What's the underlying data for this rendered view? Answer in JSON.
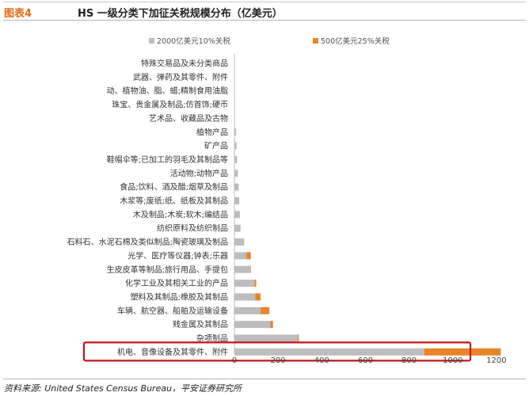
{
  "header": {
    "figure_label": "图表4",
    "title": "HS 一级分类下加征关税规模分布（亿美元）"
  },
  "footer": {
    "source": "资料来源: United States Census Bureau，平安证券研究所"
  },
  "colors": {
    "series1": "#bdbdbd",
    "series2": "#e8852a",
    "highlight_box": "#c0161b",
    "figure_label": "#e06a14"
  },
  "chart_data": {
    "type": "bar",
    "orientation": "horizontal",
    "stacked": true,
    "categories": [
      "特殊交易品及未分类商品",
      "武器、弹药及其零件、附件",
      "动、植物油、脂、蜡;精制食用油脂",
      "珠宝、贵金属及制品;仿首饰;硬币",
      "艺术品、收藏品及古物",
      "植物产品",
      "矿产品",
      "鞋帽伞等;已加工的羽毛及其制品等",
      "活动物;动物产品",
      "食品;饮料、酒及醋;烟草及制品",
      "木浆等;废纸;纸、纸板及其制品",
      "木及制品;木炭;软木;编结品",
      "纺织原料及纺织制品",
      "石料石、水泥石棉及类似制品;陶瓷玻璃及制品",
      "光学、医疗等仪器;钟表;乐器",
      "生皮皮革等制品;旅行用品、手提包",
      "化学工业及其相关工业的产品",
      "塑料及其制品;橡胶及其制品",
      "车辆、航空器、船舶及运输设备",
      "贱金属及其制品",
      "杂项制品",
      "机电、音像设备及其零件、附件"
    ],
    "series": [
      {
        "name": "2000亿美元10%关税",
        "values": [
          0,
          0,
          0,
          2,
          2,
          8,
          10,
          12,
          16,
          20,
          22,
          25,
          28,
          45,
          55,
          72,
          92,
          95,
          120,
          165,
          290,
          870
        ]
      },
      {
        "name": "500亿美元25%关税",
        "values": [
          0,
          0,
          0,
          0,
          0,
          0,
          0,
          0,
          0,
          0,
          0,
          0,
          0,
          0,
          20,
          3,
          8,
          25,
          40,
          12,
          5,
          350
        ]
      }
    ],
    "xlim": [
      0,
      1400
    ],
    "xticks": [
      "0",
      "200",
      "400",
      "600",
      "800",
      "1000",
      "1200",
      "1400"
    ],
    "grid": false,
    "legend_position": "top",
    "highlighted_category": "机电、音像设备及其零件、附件"
  }
}
